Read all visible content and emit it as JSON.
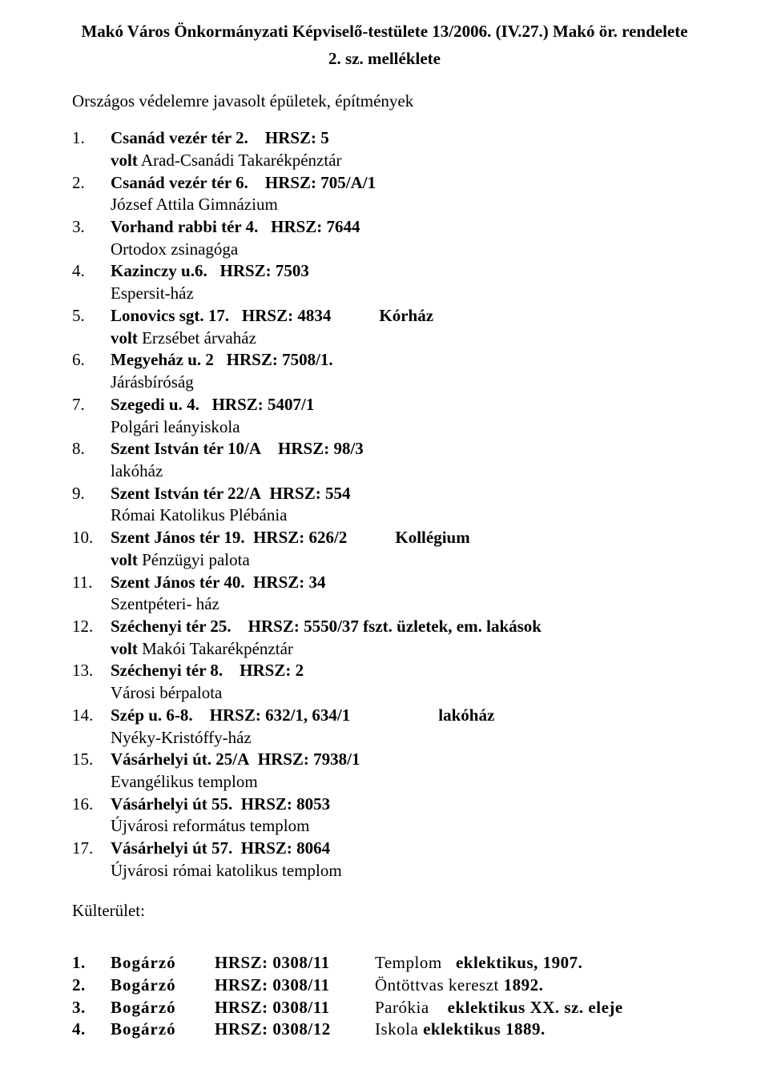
{
  "header": {
    "title": "Makó Város Önkormányzati Képviselő-testülete 13/2006. (IV.27.) Makó ör. rendelete",
    "subtitle": "2. sz. melléklete"
  },
  "intro": "Országos védelemre javasolt épületek, építmények",
  "items": [
    {
      "num": "1.",
      "head_pre": "Csanád vezér tér 2.    HRSZ: 5",
      "head_post": "",
      "desc_prefix": "volt",
      "desc": " Arad-Csanádi Takarékpénztár"
    },
    {
      "num": "2.",
      "head_pre": "Csanád vezér tér 6.    HRSZ: 705/A/1",
      "head_post": "",
      "desc_prefix": "",
      "desc": "József Attila Gimnázium"
    },
    {
      "num": "3.",
      "head_pre": "Vorhand rabbi tér 4.   HRSZ: 7644",
      "head_post": "",
      "desc_prefix": "",
      "desc": "Ortodox zsinagóga"
    },
    {
      "num": "4.",
      "head_pre": "Kazinczy u.6.   HRSZ: 7503",
      "head_post": "",
      "desc_prefix": "",
      "desc": "Espersit-ház"
    },
    {
      "num": "5.",
      "head_pre": "Lonovics sgt. 17.   HRSZ: 4834",
      "head_post": "Kórház",
      "desc_prefix": "volt",
      "desc": " Erzsébet árvaház"
    },
    {
      "num": "6.",
      "head_pre": "Megyeház u. 2   HRSZ: 7508/1.",
      "head_post": "",
      "desc_prefix": "",
      "desc": "Járásbíróság"
    },
    {
      "num": "7.",
      "head_pre": "Szegedi u. 4.   HRSZ: 5407/1",
      "head_post": "",
      "desc_prefix": "",
      "desc": "Polgári leányiskola"
    },
    {
      "num": "8.",
      "head_pre": "Szent István tér 10/A    HRSZ: 98/3",
      "head_post": "",
      "desc_prefix": "",
      "desc": "lakóház"
    },
    {
      "num": "9.",
      "head_pre": "Szent István tér 22/A  HRSZ: 554",
      "head_post": "",
      "desc_prefix": "",
      "desc": "Római Katolikus Plébánia"
    },
    {
      "num": "10.",
      "head_pre": "Szent János tér 19.  HRSZ: 626/2",
      "head_post": "Kollégium",
      "desc_prefix": "volt",
      "desc": " Pénzügyi palota"
    },
    {
      "num": "11.",
      "head_pre": "Szent János tér 40.  HRSZ: 34",
      "head_post": "",
      "desc_prefix": "",
      "desc": "Szentpéteri- ház"
    },
    {
      "num": "12.",
      "head_pre": "Széchenyi tér 25.    HRSZ: 5550/37 fszt. üzletek, em. lakások",
      "head_post": "",
      "desc_prefix": "volt",
      "desc": " Makói Takarékpénztár"
    },
    {
      "num": "13.",
      "head_pre": "Széchenyi tér 8.    HRSZ: 2",
      "head_post": "",
      "desc_prefix": "",
      "desc": "Városi bérpalota"
    },
    {
      "num": "14.",
      "head_pre": "Szép u. 6-8.    HRSZ: 632/1, 634/1",
      "head_post": "lakóház",
      "desc_prefix": "",
      "desc": "Nyéky-Kristóffy-ház"
    },
    {
      "num": "15.",
      "head_pre": "Vásárhelyi út. 25/A  HRSZ: 7938/1",
      "head_post": "",
      "desc_prefix": "",
      "desc": "Evangélikus templom"
    },
    {
      "num": "16.",
      "head_pre": "Vásárhelyi út 55.  HRSZ: 8053",
      "head_post": "",
      "desc_prefix": "",
      "desc": "Újvárosi református templom"
    },
    {
      "num": "17.",
      "head_pre": "Vásárhelyi út 57.  HRSZ: 8064",
      "head_post": "",
      "desc_prefix": "",
      "desc": "Újvárosi római katolikus templom"
    }
  ],
  "kulterulet_label": "Külterület:",
  "kulterulet": [
    {
      "n": "1.",
      "name": "Bogárzó",
      "hrsz": "HRSZ: 0308/11",
      "desc_plain": "Templom   ",
      "desc_bold": "eklektikus, 1907."
    },
    {
      "n": "2.",
      "name": "Bogárzó",
      "hrsz": "HRSZ: 0308/11",
      "desc_plain": "Öntöttvas kereszt ",
      "desc_bold": "1892."
    },
    {
      "n": "3.",
      "name": "Bogárzó",
      "hrsz": "HRSZ: 0308/11",
      "desc_plain": "Parókia    ",
      "desc_bold": "eklektikus XX. sz. eleje"
    },
    {
      "n": "4.",
      "name": "Bogárzó",
      "hrsz": "HRSZ: 0308/12",
      "desc_plain": "Iskola ",
      "desc_bold": "eklektikus 1889."
    }
  ]
}
